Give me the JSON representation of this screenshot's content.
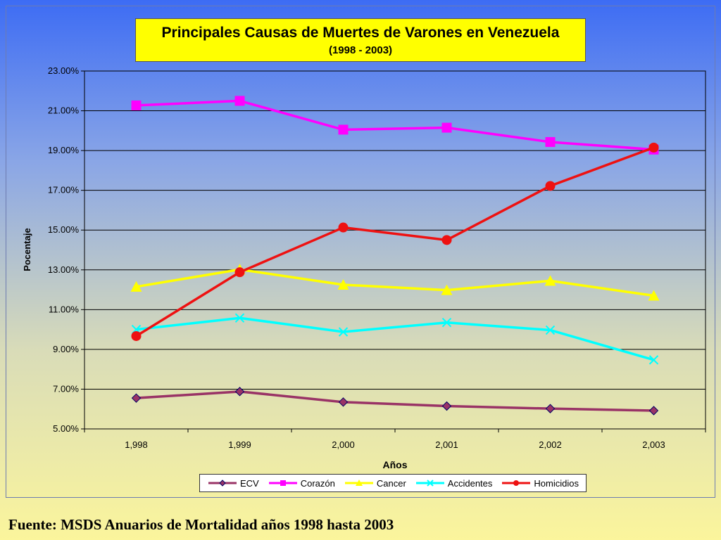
{
  "chart_data": {
    "type": "line",
    "title": "Principales Causas de Muertes de Varones en  Venezuela",
    "subtitle": "(1998 - 2003)",
    "xlabel": "Años",
    "ylabel": "Pocentaje",
    "categories": [
      "1,998",
      "1,999",
      "2,000",
      "2,001",
      "2,002",
      "2,003"
    ],
    "y_ticks": [
      "5.00%",
      "7.00%",
      "9.00%",
      "11.00%",
      "13.00%",
      "15.00%",
      "17.00%",
      "19.00%",
      "21.00%",
      "23.00%"
    ],
    "ylim": [
      5,
      23
    ],
    "grid": true,
    "legend_position": "bottom",
    "series": [
      {
        "name": "ECV",
        "color": "#993366",
        "marker": "diamond",
        "values": [
          6.55,
          6.88,
          6.35,
          6.15,
          6.02,
          5.92
        ]
      },
      {
        "name": "Corazón",
        "color": "#ff00ff",
        "marker": "square",
        "values": [
          21.27,
          21.5,
          20.05,
          20.15,
          19.43,
          19.05
        ]
      },
      {
        "name": "Cancer",
        "color": "#ffff00",
        "marker": "triangle",
        "values": [
          12.15,
          13.02,
          12.25,
          11.98,
          12.45,
          11.7
        ]
      },
      {
        "name": "Accidentes",
        "color": "#00ffff",
        "marker": "x",
        "values": [
          10.0,
          10.58,
          9.88,
          10.35,
          9.97,
          8.47
        ]
      },
      {
        "name": "Homicidios",
        "color": "#ee1111",
        "marker": "circle",
        "values": [
          9.67,
          12.88,
          15.13,
          14.5,
          17.22,
          19.15
        ]
      }
    ]
  },
  "source_note": "Fuente: MSDS Anuarios de Mortalidad años 1998 hasta 2003"
}
